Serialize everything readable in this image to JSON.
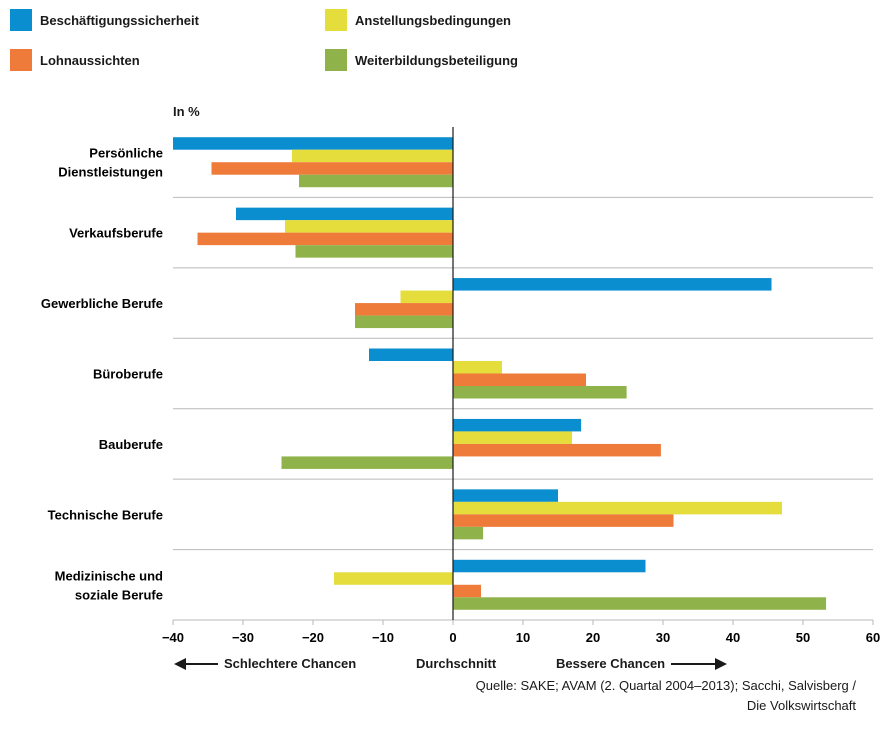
{
  "legend": [
    {
      "label": "Beschäftigungssicherheit",
      "color": "#0a8ed0"
    },
    {
      "label": "Anstellungsbedingungen",
      "color": "#e4dd3c"
    },
    {
      "label": "Lohnaussichten",
      "color": "#ee7b3a"
    },
    {
      "label": "Weiterbildungsbeteiligung",
      "color": "#8fb34a"
    }
  ],
  "unit_label": "In %",
  "footer": {
    "left": "Schlechtere Chancen",
    "center": "Durchschnitt",
    "right": "Bessere Chancen"
  },
  "source": {
    "line1": "Quelle: SAKE; AVAM (2. Quartal 2004–2013); Sacchi, Salvisberg /",
    "line2": "Die Volkswirtschaft"
  },
  "chart_data": {
    "type": "bar",
    "orientation": "horizontal",
    "categories": [
      "Persönliche Dienstleistungen",
      "Verkaufsberufe",
      "Gewerbliche Berufe",
      "Büroberufe",
      "Bauberufe",
      "Technische Berufe",
      "Medizinische und soziale Berufe"
    ],
    "category_lines": [
      [
        "Persönliche",
        "Dienstleistungen"
      ],
      [
        "Verkaufsberufe"
      ],
      [
        "Gewerbliche Berufe"
      ],
      [
        "Büroberufe"
      ],
      [
        "Bauberufe"
      ],
      [
        "Technische Berufe"
      ],
      [
        "Medizinische und",
        "soziale Berufe"
      ]
    ],
    "series": [
      {
        "name": "Beschäftigungssicherheit",
        "color": "#0a8ed0",
        "values": [
          -40,
          -31,
          45.5,
          -12,
          18.3,
          15,
          27.5
        ]
      },
      {
        "name": "Anstellungsbedingungen",
        "color": "#e4dd3c",
        "values": [
          -23,
          -24,
          -7.5,
          7,
          17,
          47,
          -17
        ]
      },
      {
        "name": "Lohnaussichten",
        "color": "#ee7b3a",
        "values": [
          -34.5,
          -36.5,
          -14,
          19,
          29.7,
          31.5,
          4
        ]
      },
      {
        "name": "Weiterbildungsbeteiligung",
        "color": "#8fb34a",
        "values": [
          -22,
          -22.5,
          -14,
          24.8,
          -24.5,
          4.3,
          53.3
        ]
      }
    ],
    "xlim": [
      -40,
      60
    ],
    "xticks": [
      -40,
      -30,
      -20,
      -10,
      0,
      10,
      20,
      30,
      40,
      50,
      60
    ],
    "xlabel": "",
    "ylabel": ""
  }
}
